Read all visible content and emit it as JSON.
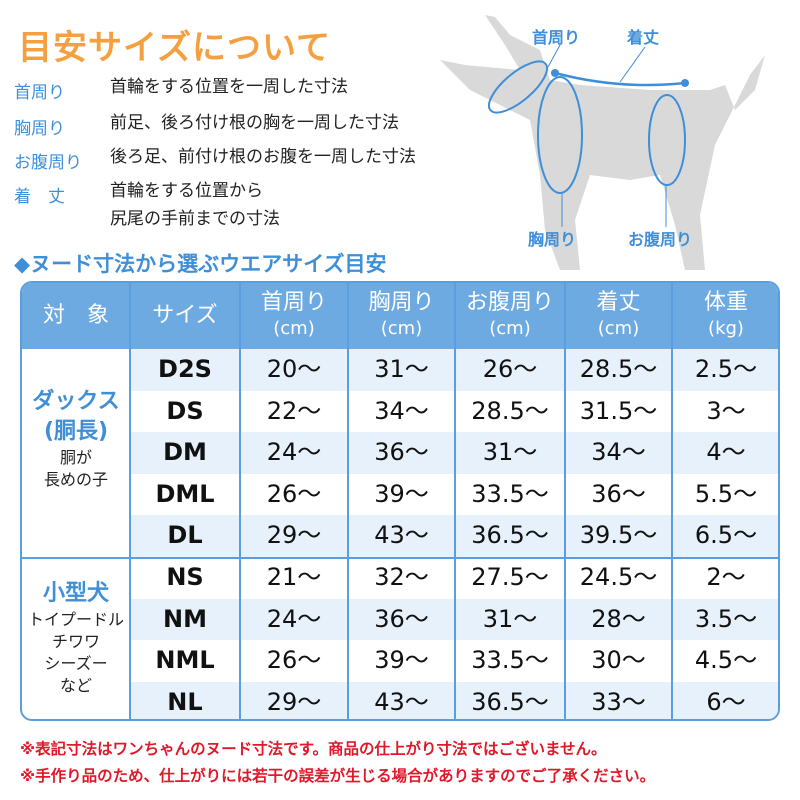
{
  "title": "目安サイズについて",
  "definitions": [
    {
      "term": "首周り",
      "text": "首輪をする位置を一周した寸法"
    },
    {
      "term": "胸周り",
      "text": "前足、後ろ付け根の胸を一周した寸法"
    },
    {
      "term": "お腹周り",
      "text": "後ろ足、前付け根のお腹を一周した寸法"
    },
    {
      "term": "着　丈",
      "text": "首輪をする位置から",
      "text2": "尻尾の手前までの寸法"
    }
  ],
  "diagram": {
    "labels": {
      "neck": "首周り",
      "length": "着丈",
      "chest": "胸周り",
      "belly": "お腹周り"
    }
  },
  "subtitle": "◆ヌード寸法から選ぶウエアサイズ目安",
  "table": {
    "headers": [
      {
        "label": "対　象",
        "unit": ""
      },
      {
        "label": "サイズ",
        "unit": ""
      },
      {
        "label": "首周り",
        "unit": "(cm)"
      },
      {
        "label": "胸周り",
        "unit": "(cm)"
      },
      {
        "label": "お腹周り",
        "unit": "(cm)"
      },
      {
        "label": "着丈",
        "unit": "(cm)"
      },
      {
        "label": "体重",
        "unit": "(kg)"
      }
    ],
    "groups": [
      {
        "main": "ダックス",
        "main2": "(胴長)",
        "sub": [
          "胴が",
          "長めの子"
        ]
      },
      {
        "main": "小型犬",
        "sub": [
          "トイプードル",
          "チワワ",
          "シーズー",
          "など"
        ]
      }
    ],
    "rows": [
      [
        "D2S",
        "20～",
        "31～",
        "26～",
        "28.5～",
        "2.5～"
      ],
      [
        "DS",
        "22～",
        "34～",
        "28.5～",
        "31.5～",
        "3～"
      ],
      [
        "DM",
        "24～",
        "36～",
        "31～",
        "34～",
        "4～"
      ],
      [
        "DML",
        "26～",
        "39～",
        "33.5～",
        "36～",
        "5.5～"
      ],
      [
        "DL",
        "29～",
        "43～",
        "36.5～",
        "39.5～",
        "6.5～"
      ],
      [
        "NS",
        "21～",
        "32～",
        "27.5～",
        "24.5～",
        "2～"
      ],
      [
        "NM",
        "24～",
        "36～",
        "31～",
        "28～",
        "3.5～"
      ],
      [
        "NML",
        "26～",
        "39～",
        "33.5～",
        "30～",
        "4.5～"
      ],
      [
        "NL",
        "29～",
        "43～",
        "36.5～",
        "33～",
        "6～"
      ]
    ]
  },
  "notes": [
    "※表記寸法はワンちゃんのヌード寸法です。商品の仕上がり寸法ではございません。",
    "※手作り品のため、仕上がりには若干の誤差が生じる場合がありますのでご了承ください。"
  ],
  "colors": {
    "accent_orange": "#f5a040",
    "accent_blue": "#3f8fd8",
    "header_blue": "#6eaae2",
    "row_alt": "#e6f1fb",
    "note_red": "#e0182a"
  }
}
